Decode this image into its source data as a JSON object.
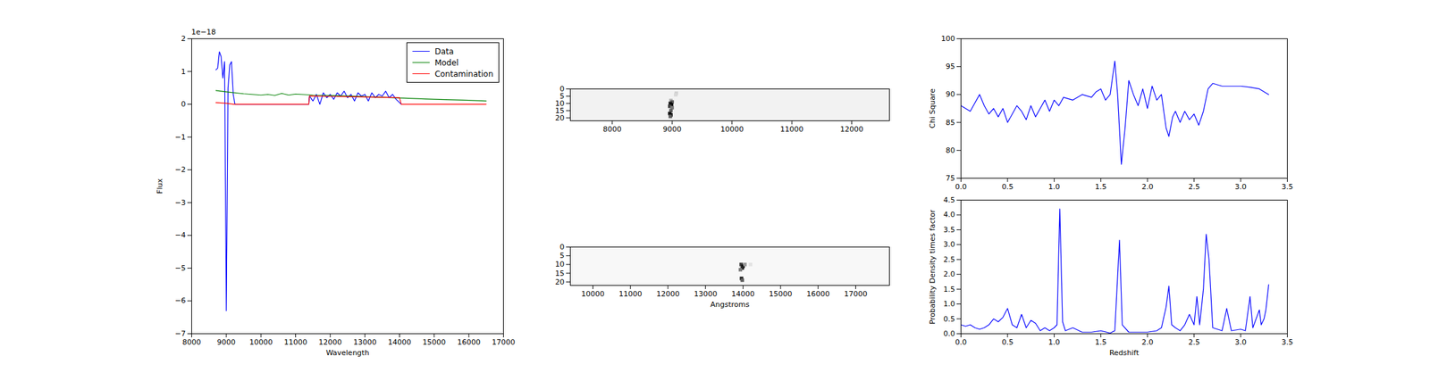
{
  "chart_data": [
    {
      "type": "line",
      "xlabel": "Wavelength",
      "ylabel": "Flux",
      "y_multiplier": "1e−18",
      "xlim": [
        8000,
        17000
      ],
      "xticks": [
        8000,
        9000,
        10000,
        11000,
        12000,
        13000,
        14000,
        15000,
        16000,
        17000
      ],
      "ylim": [
        -7,
        2
      ],
      "yticks": [
        -7,
        -6,
        -5,
        -4,
        -3,
        -2,
        -1,
        0,
        1,
        2
      ],
      "legend": "upper right",
      "series": [
        {
          "name": "Data",
          "color": "#0000ff",
          "x": [
            8700,
            8750,
            8800,
            8850,
            8900,
            8950,
            9000,
            9050,
            9100,
            9150,
            9200,
            9250,
            11380,
            11400,
            11500,
            11600,
            11700,
            11800,
            11900,
            12000,
            12100,
            12200,
            12300,
            12400,
            12500,
            12600,
            12700,
            12800,
            12900,
            13000,
            13100,
            13200,
            13300,
            13400,
            13500,
            13600,
            13700,
            13800,
            13900,
            14000,
            14050
          ],
          "values": [
            1.05,
            1.1,
            1.6,
            1.45,
            0.8,
            1.3,
            -6.3,
            0.5,
            1.2,
            1.3,
            0.3,
            0.0,
            0.0,
            0.25,
            0.1,
            0.3,
            0.0,
            0.35,
            0.2,
            0.3,
            0.15,
            0.35,
            0.25,
            0.4,
            0.2,
            0.3,
            0.1,
            0.35,
            0.25,
            0.3,
            0.1,
            0.35,
            0.2,
            0.3,
            0.25,
            0.4,
            0.2,
            0.3,
            0.15,
            0.05,
            0.0
          ]
        },
        {
          "name": "Model",
          "color": "#008000",
          "x": [
            8700,
            9000,
            9500,
            10000,
            10200,
            10400,
            10600,
            10800,
            11000,
            11500,
            12000,
            12500,
            13000,
            13500,
            14000,
            15000,
            16000,
            16500
          ],
          "values": [
            0.42,
            0.38,
            0.32,
            0.28,
            0.3,
            0.27,
            0.33,
            0.28,
            0.31,
            0.28,
            0.27,
            0.25,
            0.23,
            0.21,
            0.19,
            0.15,
            0.12,
            0.1
          ]
        },
        {
          "name": "Contamination",
          "color": "#ff0000",
          "x": [
            8700,
            9000,
            9200,
            11380,
            11400,
            14000,
            14050,
            16500
          ],
          "values": [
            0.05,
            0.03,
            0.0,
            0.0,
            0.25,
            0.2,
            0.0,
            0.0
          ]
        }
      ]
    },
    {
      "type": "image",
      "xlim": [
        7300,
        12630
      ],
      "xticks": [
        8000,
        9000,
        10000,
        11000,
        12000
      ],
      "ylim": [
        0,
        22
      ],
      "yticks": [
        0,
        5,
        10,
        15,
        20
      ],
      "zlim": [
        0,
        1
      ],
      "background": 0.1,
      "cells": [
        {
          "x": 8980,
          "y": 8,
          "value": 0.4
        },
        {
          "x": 9000,
          "y": 9,
          "value": 0.7
        },
        {
          "x": 8970,
          "y": 10,
          "value": 0.9
        },
        {
          "x": 8990,
          "y": 11,
          "value": 1.0
        },
        {
          "x": 8960,
          "y": 12,
          "value": 0.8
        },
        {
          "x": 9000,
          "y": 13,
          "value": 0.6
        },
        {
          "x": 8980,
          "y": 15,
          "value": 0.7
        },
        {
          "x": 8960,
          "y": 17,
          "value": 0.9
        },
        {
          "x": 8980,
          "y": 18,
          "value": 1.0
        },
        {
          "x": 8970,
          "y": 19,
          "value": 0.7
        },
        {
          "x": 9070,
          "y": 3,
          "value": 0.3
        },
        {
          "x": 9060,
          "y": 4,
          "value": 0.25
        }
      ]
    },
    {
      "type": "image",
      "xlabel": "Angstroms",
      "xlim": [
        9400,
        17900
      ],
      "xticks": [
        10000,
        11000,
        12000,
        13000,
        14000,
        15000,
        16000,
        17000
      ],
      "ylim": [
        0,
        22
      ],
      "yticks": [
        0,
        5,
        10,
        15,
        20
      ],
      "zlim": [
        0,
        1
      ],
      "background": 0.06,
      "cells": [
        {
          "x": 13950,
          "y": 10,
          "value": 0.8
        },
        {
          "x": 14000,
          "y": 11,
          "value": 1.0
        },
        {
          "x": 13980,
          "y": 12,
          "value": 0.9
        },
        {
          "x": 13930,
          "y": 13,
          "value": 0.6
        },
        {
          "x": 14050,
          "y": 10,
          "value": 0.5
        },
        {
          "x": 14200,
          "y": 10,
          "value": 0.2
        },
        {
          "x": 13960,
          "y": 18,
          "value": 0.9
        },
        {
          "x": 13980,
          "y": 19,
          "value": 0.7
        }
      ]
    },
    {
      "type": "line",
      "ylabel": "Chi Square",
      "color": "#0000ff",
      "xlim": [
        0,
        3.5
      ],
      "xticks": [
        {
          "value": 0,
          "label": "0.0"
        },
        0.5,
        {
          "value": 1,
          "label": "1.0"
        },
        1.5,
        {
          "value": 2,
          "label": "2.0"
        },
        2.5,
        {
          "value": 3,
          "label": "3.0"
        },
        3.5
      ],
      "ylim": [
        75,
        100
      ],
      "yticks": [
        75,
        80,
        85,
        90,
        95,
        100
      ],
      "x": [
        0,
        0.05,
        0.1,
        0.15,
        0.2,
        0.25,
        0.3,
        0.35,
        0.4,
        0.45,
        0.5,
        0.55,
        0.6,
        0.65,
        0.7,
        0.75,
        0.8,
        0.85,
        0.9,
        0.95,
        1.0,
        1.05,
        1.1,
        1.2,
        1.3,
        1.4,
        1.45,
        1.5,
        1.55,
        1.6,
        1.65,
        1.68,
        1.72,
        1.76,
        1.8,
        1.85,
        1.9,
        1.95,
        2.0,
        2.05,
        2.1,
        2.15,
        2.2,
        2.23,
        2.27,
        2.3,
        2.35,
        2.4,
        2.45,
        2.5,
        2.55,
        2.6,
        2.65,
        2.7,
        2.8,
        2.9,
        3.0,
        3.1,
        3.2,
        3.3
      ],
      "values": [
        88,
        87.5,
        87,
        88.5,
        90,
        88,
        86.5,
        87.5,
        86,
        87.5,
        85,
        86.5,
        88,
        87,
        85.5,
        88,
        86,
        87.5,
        89,
        87,
        89,
        88,
        89.5,
        89,
        90,
        89.5,
        90.5,
        91,
        89,
        90,
        96,
        90,
        77.5,
        84,
        92.5,
        90,
        88,
        91,
        87.5,
        91.5,
        89,
        90,
        84,
        82.5,
        86,
        87,
        85,
        87,
        85.5,
        86.5,
        84.5,
        87,
        91,
        92,
        91.5,
        91.5,
        91.5,
        91.3,
        91,
        90
      ]
    },
    {
      "type": "line",
      "xlabel": "Redshift",
      "ylabel": "Probability Density times factor",
      "color": "#0000ff",
      "xlim": [
        0,
        3.5
      ],
      "xticks": [
        {
          "value": 0,
          "label": "0.0"
        },
        0.5,
        {
          "value": 1,
          "label": "1.0"
        },
        1.5,
        {
          "value": 2,
          "label": "2.0"
        },
        2.5,
        {
          "value": 3,
          "label": "3.0"
        },
        3.5
      ],
      "ylim": [
        0,
        4.5
      ],
      "yticks": [
        {
          "value": 0,
          "label": "0.0"
        },
        0.5,
        {
          "value": 1,
          "label": "1.0"
        },
        1.5,
        {
          "value": 2,
          "label": "2.0"
        },
        2.5,
        {
          "value": 3,
          "label": "3.0"
        },
        3.5,
        {
          "value": 4,
          "label": "4.0"
        },
        4.5
      ],
      "x": [
        0,
        0.05,
        0.1,
        0.15,
        0.2,
        0.25,
        0.3,
        0.35,
        0.4,
        0.45,
        0.5,
        0.55,
        0.6,
        0.65,
        0.7,
        0.75,
        0.8,
        0.85,
        0.9,
        0.95,
        1.0,
        1.03,
        1.06,
        1.09,
        1.12,
        1.2,
        1.3,
        1.4,
        1.5,
        1.6,
        1.65,
        1.7,
        1.73,
        1.8,
        1.9,
        2.0,
        2.1,
        2.15,
        2.2,
        2.23,
        2.26,
        2.3,
        2.35,
        2.4,
        2.45,
        2.5,
        2.53,
        2.56,
        2.6,
        2.63,
        2.66,
        2.7,
        2.8,
        2.85,
        2.9,
        3.0,
        3.05,
        3.1,
        3.13,
        3.2,
        3.22,
        3.25,
        3.27,
        3.3
      ],
      "values": [
        0.3,
        0.25,
        0.3,
        0.2,
        0.15,
        0.2,
        0.3,
        0.5,
        0.4,
        0.55,
        0.85,
        0.3,
        0.2,
        0.65,
        0.2,
        0.45,
        0.35,
        0.1,
        0.2,
        0.1,
        0.2,
        0.3,
        4.2,
        0.4,
        0.1,
        0.2,
        0.05,
        0.05,
        0.1,
        0.02,
        0.1,
        3.15,
        0.3,
        0.05,
        0.05,
        0.05,
        0.1,
        0.2,
        0.9,
        1.6,
        0.3,
        0.2,
        0.1,
        0.3,
        0.65,
        0.3,
        1.25,
        0.3,
        1.5,
        3.35,
        2.5,
        0.2,
        0.1,
        0.85,
        0.1,
        0.15,
        0.1,
        1.25,
        0.2,
        0.8,
        0.3,
        0.5,
        0.8,
        1.65
      ]
    }
  ]
}
